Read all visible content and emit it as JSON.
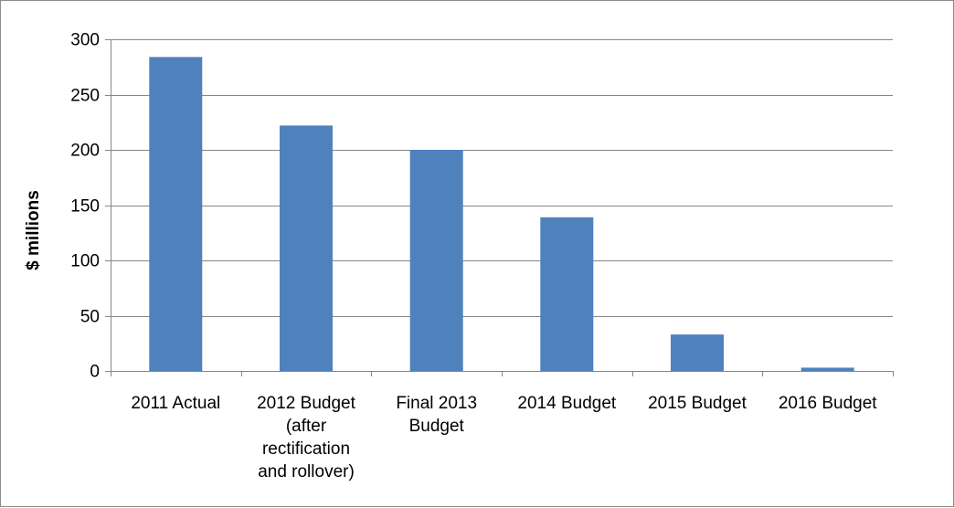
{
  "chart_data": {
    "type": "bar",
    "title": "",
    "xlabel": "",
    "ylabel": "$ millions",
    "ylim": [
      0,
      300
    ],
    "yticks": [
      0,
      50,
      100,
      150,
      200,
      250,
      300
    ],
    "grid": true,
    "legend": "none",
    "bar_color": "#4f81bd",
    "categories": [
      [
        "2011 Actual"
      ],
      [
        "2012 Budget",
        "(after",
        "rectification",
        "and rollover)"
      ],
      [
        "Final 2013",
        "Budget"
      ],
      [
        "2014 Budget"
      ],
      [
        "2015 Budget"
      ],
      [
        "2016 Budget"
      ]
    ],
    "values": [
      284,
      222,
      200,
      139,
      33,
      3
    ]
  }
}
